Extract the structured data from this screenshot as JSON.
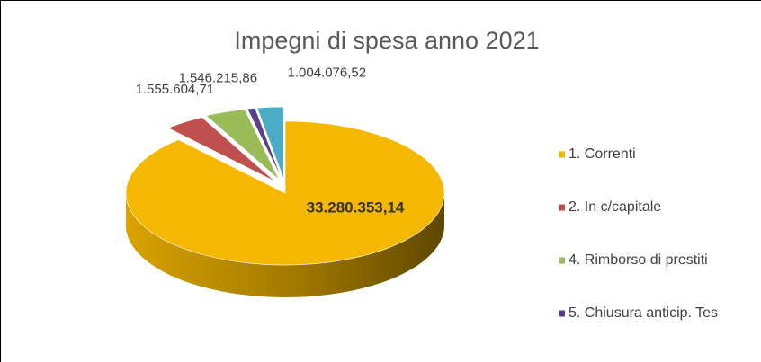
{
  "chart_data": {
    "type": "pie",
    "title": "Impegni di spesa anno 2021",
    "categories": [
      "1. Correnti",
      "2. In c/capitale",
      "4. Rimborso di prestiti",
      "5. Chiusura anticip. Tes",
      null
    ],
    "values": [
      33280353.14,
      1555604.71,
      1546215.86,
      300000,
      1004076.52
    ],
    "value_labels": [
      "33.280.353,14",
      "1.555.604,71",
      "1.546.215,86",
      null,
      "1.004.076,52"
    ],
    "colors": [
      "#f5b800",
      "#c0504d",
      "#9bbb59",
      "#5a3f8f",
      "#4bacc6"
    ],
    "legend": "right"
  }
}
